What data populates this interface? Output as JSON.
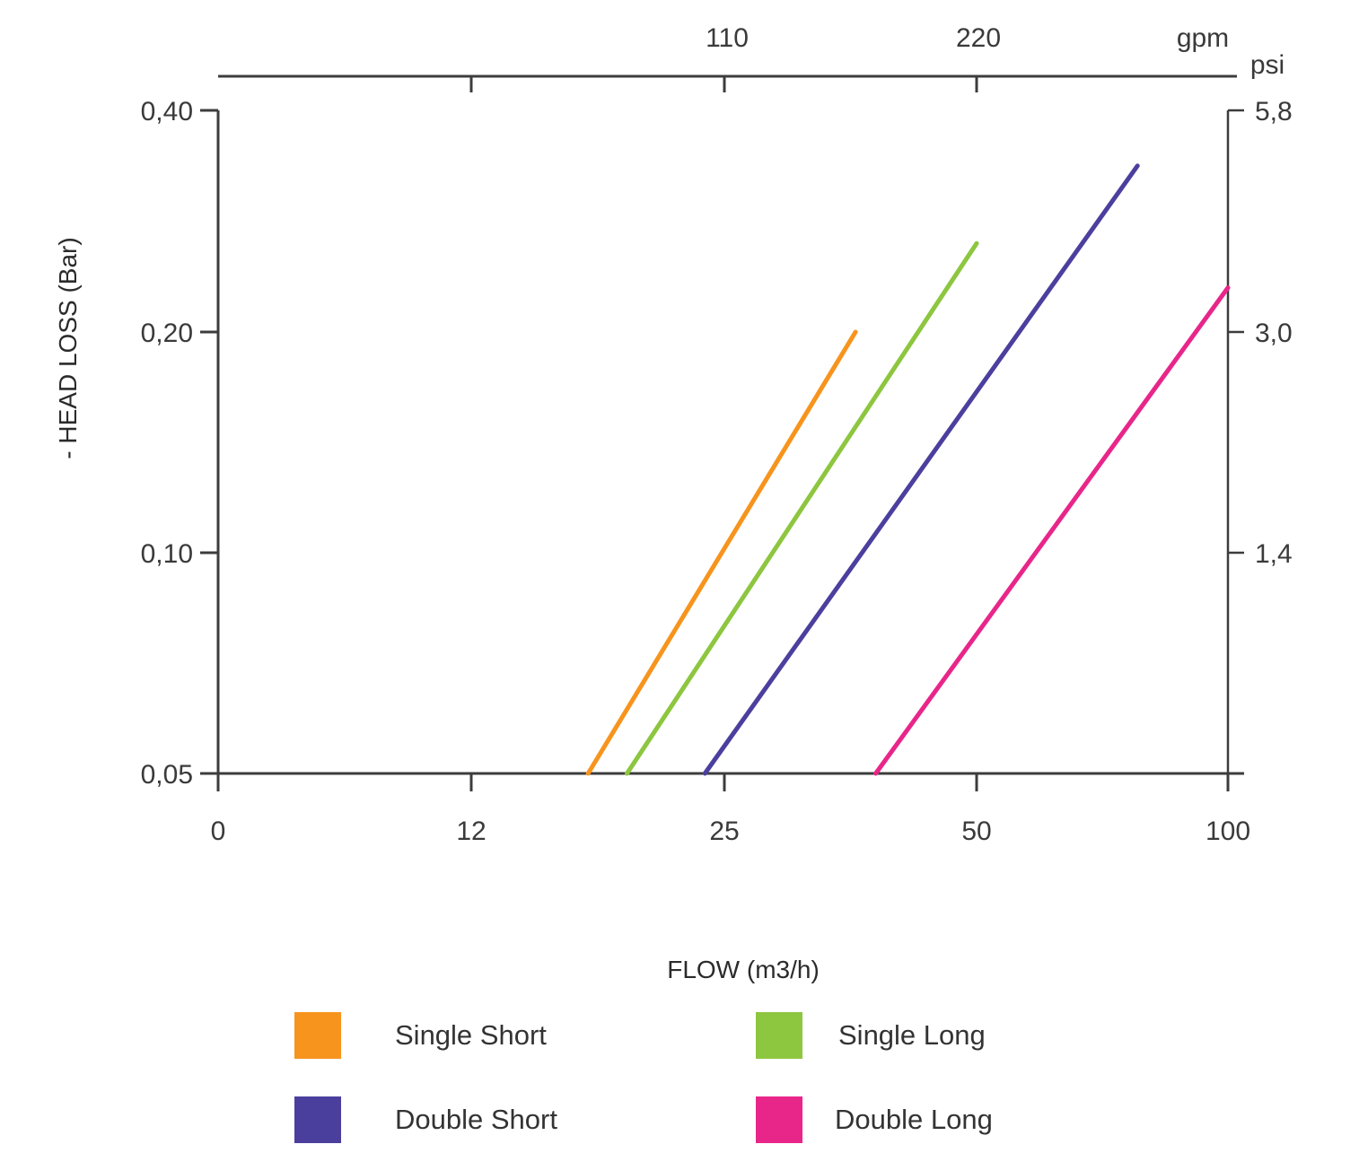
{
  "chart_data": {
    "type": "line",
    "xlabel": "FLOW (m3/h)",
    "ylabel": "- HEAD LOSS (Bar)",
    "x_scale": "categorical-log",
    "x_ticks": [
      "0",
      "12",
      "25",
      "50",
      "100"
    ],
    "x_top_unit": "gpm",
    "x_top_ticks": [
      "110",
      "220"
    ],
    "y_ticks": [
      "0,05",
      "0,10",
      "0,20",
      "0,40"
    ],
    "y_right_unit": "psi",
    "y_right_ticks": [
      "1,4",
      "3,0",
      "5,8"
    ],
    "ylim": [
      0.05,
      0.4
    ],
    "grid": false,
    "legend_position": "bottom",
    "series": [
      {
        "name": "Single Short",
        "color": "#f7941d",
        "points": [
          {
            "x": 18,
            "y": 0.05
          },
          {
            "x": 38,
            "y": 0.2
          }
        ]
      },
      {
        "name": "Single Long",
        "color": "#8dc63f",
        "points": [
          {
            "x": 20,
            "y": 0.05
          },
          {
            "x": 50,
            "y": 0.28
          }
        ]
      },
      {
        "name": "Double Short",
        "color": "#4b3f9e",
        "points": [
          {
            "x": 24,
            "y": 0.05
          },
          {
            "x": 82,
            "y": 0.35
          }
        ]
      },
      {
        "name": "Double Long",
        "color": "#e8268a",
        "points": [
          {
            "x": 40,
            "y": 0.05
          },
          {
            "x": 100,
            "y": 0.24
          }
        ]
      }
    ]
  }
}
